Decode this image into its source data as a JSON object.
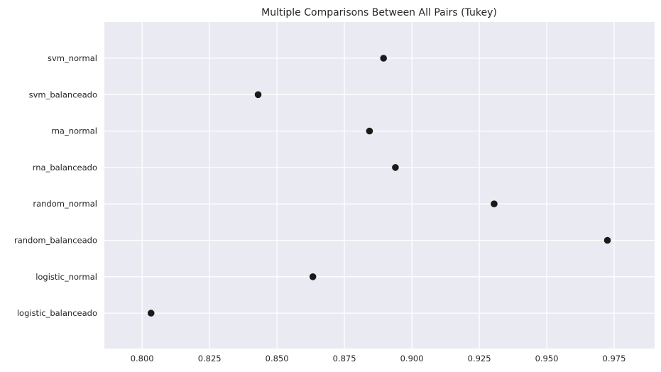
{
  "chart_data": {
    "type": "scatter",
    "title": "Multiple Comparisons Between All Pairs (Tukey)",
    "xlabel": "",
    "ylabel": "",
    "xlim": [
      0.786,
      0.99
    ],
    "xticks": [
      0.8,
      0.825,
      0.85,
      0.875,
      0.9,
      0.925,
      0.95,
      0.975
    ],
    "xtick_labels": [
      "0.800",
      "0.825",
      "0.850",
      "0.875",
      "0.900",
      "0.925",
      "0.950",
      "0.975"
    ],
    "grid": true,
    "background_color": "#eaeaf2",
    "grid_color": "#ffffff",
    "marker_color": "#1a1a1a",
    "categories": [
      "svm_normal",
      "svm_balanceado",
      "rna_normal",
      "rna_balanceado",
      "random_normal",
      "random_balanceado",
      "logistic_normal",
      "logistic_balanceado"
    ],
    "values": [
      0.8895,
      0.843,
      0.8843,
      0.8939,
      0.9305,
      0.9725,
      0.8633,
      0.8033
    ]
  }
}
